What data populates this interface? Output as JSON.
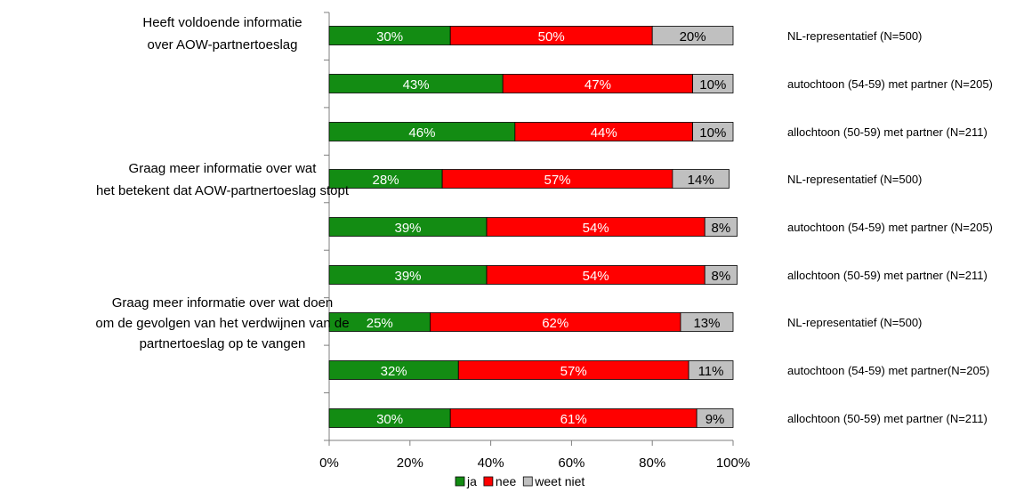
{
  "chart_data": {
    "type": "bar",
    "orientation": "horizontal",
    "stacked": "percent",
    "xlim": [
      0,
      100
    ],
    "x_ticks": [
      "0%",
      "20%",
      "40%",
      "60%",
      "80%",
      "100%"
    ],
    "group_labels": [
      {
        "lines": [
          "Heeft voldoende informatie",
          "over AOW-partnertoeslag"
        ]
      },
      {
        "lines": [
          "Graag meer informatie over wat",
          "het betekent dat AOW-partnertoeslag stopt"
        ]
      },
      {
        "lines": [
          "Graag meer informatie over wat doen",
          "om de gevolgen van het verdwijnen van de",
          "partnertoeslag op te vangen"
        ]
      }
    ],
    "categories": [
      "NL-representatief (N=500)",
      "autochtoon (54-59) met partner (N=205)",
      "allochtoon (50-59) met partner (N=211)",
      "NL-representatief  (N=500)",
      "autochtoon (54-59) met partner (N=205)",
      "allochtoon (50-59) met partner (N=211)",
      "NL-representatief (N=500)",
      "autochtoon (54-59) met partner(N=205)",
      "allochtoon (50-59) met partner (N=211)"
    ],
    "series": [
      {
        "name": "ja",
        "color": "#138c13",
        "values": [
          30,
          43,
          46,
          28,
          39,
          39,
          25,
          32,
          30
        ]
      },
      {
        "name": "nee",
        "color": "#ff0000",
        "values": [
          50,
          47,
          44,
          57,
          54,
          54,
          62,
          57,
          61
        ]
      },
      {
        "name": "weet niet",
        "color": "#c0c0c0",
        "values": [
          20,
          10,
          10,
          14,
          8,
          8,
          13,
          11,
          9
        ]
      }
    ],
    "legend_position": "bottom",
    "grid": false
  }
}
